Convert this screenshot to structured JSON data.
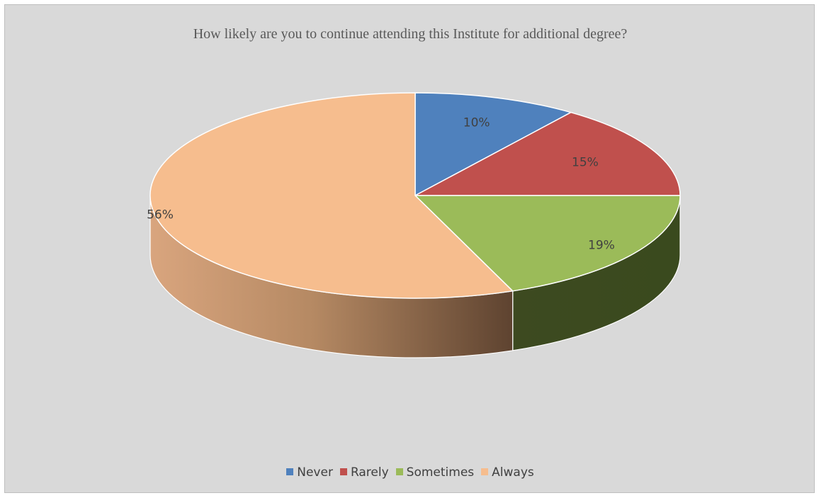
{
  "chart_data": {
    "type": "pie",
    "title": "How likely are you to continue attending this Institute for  additional degree?",
    "categories": [
      "Never",
      "Rarely",
      "Sometimes",
      "Always"
    ],
    "values": [
      10,
      15,
      19,
      56
    ],
    "value_labels": [
      "10%",
      "15%",
      "19%",
      "56%"
    ],
    "colors": [
      "#4f81bd",
      "#c0504d",
      "#9bbb59",
      "#f6bd8e"
    ],
    "legend_position": "bottom",
    "three_d": true
  }
}
